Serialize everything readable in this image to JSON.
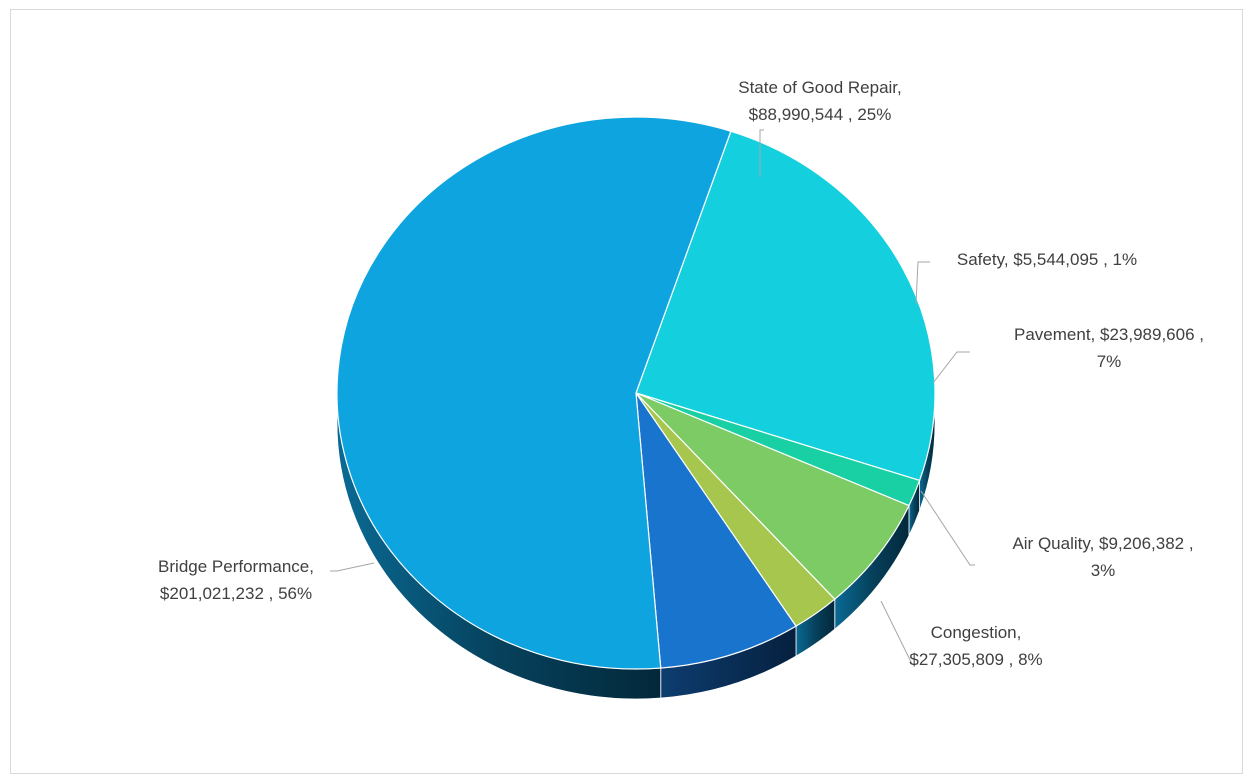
{
  "chart_data": {
    "type": "pie",
    "slices": [
      {
        "key": "sgr",
        "label": "State of Good Repair",
        "value": 88990544,
        "value_text": "$88,990,544",
        "percent": 25,
        "color": "#14d0df"
      },
      {
        "key": "safety",
        "label": "Safety",
        "value": 5544095,
        "value_text": "$5,544,095",
        "percent": 1,
        "color": "#19d0a5"
      },
      {
        "key": "pavement",
        "label": "Pavement",
        "value": 23989606,
        "value_text": "$23,989,606",
        "percent": 7,
        "color": "#7ccb65"
      },
      {
        "key": "airquality",
        "label": "Air Quality",
        "value": 9206382,
        "value_text": "$9,206,382",
        "percent": 3,
        "color": "#a6c64d"
      },
      {
        "key": "congestion",
        "label": "Congestion",
        "value": 27305809,
        "value_text": "$27,305,809",
        "percent": 8,
        "color": "#1874cc"
      },
      {
        "key": "bridge",
        "label": "Bridge Performance",
        "value": 201021232,
        "value_text": "$201,021,232",
        "percent": 56,
        "color": "#0ea4e0"
      }
    ],
    "data_labels": {
      "sgr": [
        "State of Good Repair,",
        "$88,990,544 , 25%"
      ],
      "safety": [
        "Safety, $5,544,095 , 1%"
      ],
      "pavement": [
        "Pavement, $23,989,606 ,",
        "7%"
      ],
      "airquality": [
        "Air Quality, $9,206,382 ,",
        "3%"
      ],
      "congestion": [
        "Congestion,",
        "$27,305,809 , 8%"
      ],
      "bridge": [
        "Bridge Performance,",
        "$201,021,232 , 56%"
      ]
    },
    "style": "3d-pie",
    "legend": "none"
  }
}
